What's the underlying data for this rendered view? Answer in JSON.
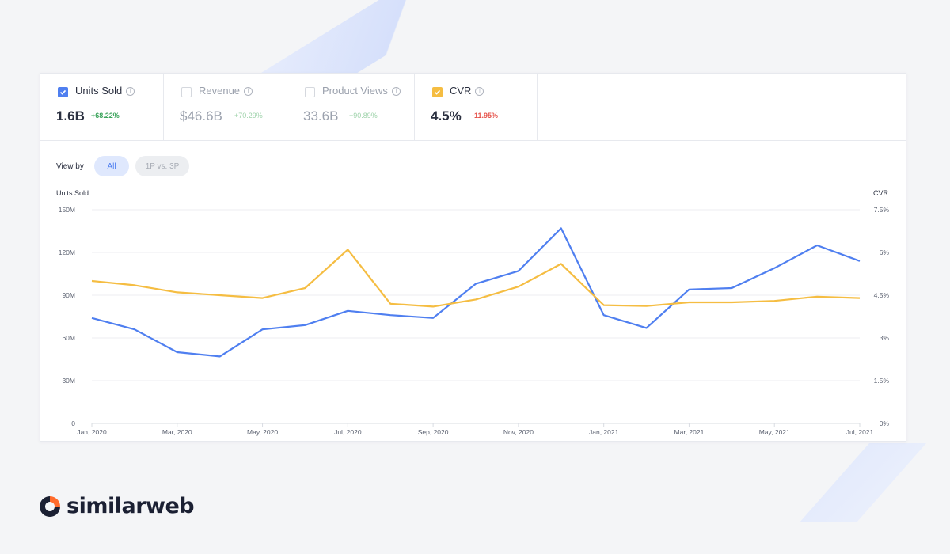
{
  "metrics": [
    {
      "label": "Units Sold",
      "value": "1.6B",
      "change": "+68.22%",
      "checked": true,
      "color": "#4f7ff0",
      "change_dir": "pos"
    },
    {
      "label": "Revenue",
      "value": "$46.6B",
      "change": "+70.29%",
      "checked": false,
      "change_dir": "pos"
    },
    {
      "label": "Product Views",
      "value": "33.6B",
      "change": "+90.89%",
      "checked": false,
      "change_dir": "pos"
    },
    {
      "label": "CVR",
      "value": "4.5%",
      "change": "-11.95%",
      "checked": true,
      "color": "#f5bd42",
      "change_dir": "neg"
    }
  ],
  "info_glyph": "i",
  "view_by": {
    "label": "View by",
    "options": [
      "All",
      "1P vs. 3P"
    ],
    "selected": "All"
  },
  "brand": {
    "name": "similarweb",
    "icon": "similarweb-logo-icon"
  },
  "chart_data": {
    "type": "line",
    "left_axis": {
      "title": "Units Sold",
      "ticks": [
        "0",
        "30M",
        "60M",
        "90M",
        "120M",
        "150M"
      ],
      "range": [
        0,
        150
      ]
    },
    "right_axis": {
      "title": "CVR",
      "ticks": [
        "0%",
        "1.5%",
        "3%",
        "4.5%",
        "6%",
        "7.5%"
      ],
      "range": [
        0,
        7.5
      ]
    },
    "x_labels": [
      "Jan, 2020",
      "Mar, 2020",
      "May, 2020",
      "Jul, 2020",
      "Sep, 2020",
      "Nov, 2020",
      "Jan, 2021",
      "Mar, 2021",
      "May, 2021",
      "Jul, 2021"
    ],
    "x": [
      "Jan 2020",
      "Feb 2020",
      "Mar 2020",
      "Apr 2020",
      "May 2020",
      "Jun 2020",
      "Jul 2020",
      "Aug 2020",
      "Sep 2020",
      "Oct 2020",
      "Nov 2020",
      "Dec 2020",
      "Jan 2021",
      "Feb 2021",
      "Mar 2021",
      "Apr 2021",
      "May 2021",
      "Jun 2021",
      "Jul 2021"
    ],
    "series": [
      {
        "axis": "left",
        "color": "#4f7ff0",
        "unit": "M",
        "values": [
          74,
          66,
          50,
          47,
          66,
          69,
          79,
          76,
          74,
          98,
          107,
          137,
          76,
          67,
          94,
          95,
          109,
          125,
          114
        ]
      },
      {
        "axis": "right",
        "color": "#f5bd42",
        "unit": "%",
        "values": [
          5.0,
          4.85,
          4.6,
          4.5,
          4.4,
          4.75,
          6.1,
          4.2,
          4.1,
          4.35,
          4.8,
          5.6,
          4.15,
          4.12,
          4.25,
          4.25,
          4.3,
          4.45,
          4.4
        ]
      }
    ],
    "grid": true
  }
}
